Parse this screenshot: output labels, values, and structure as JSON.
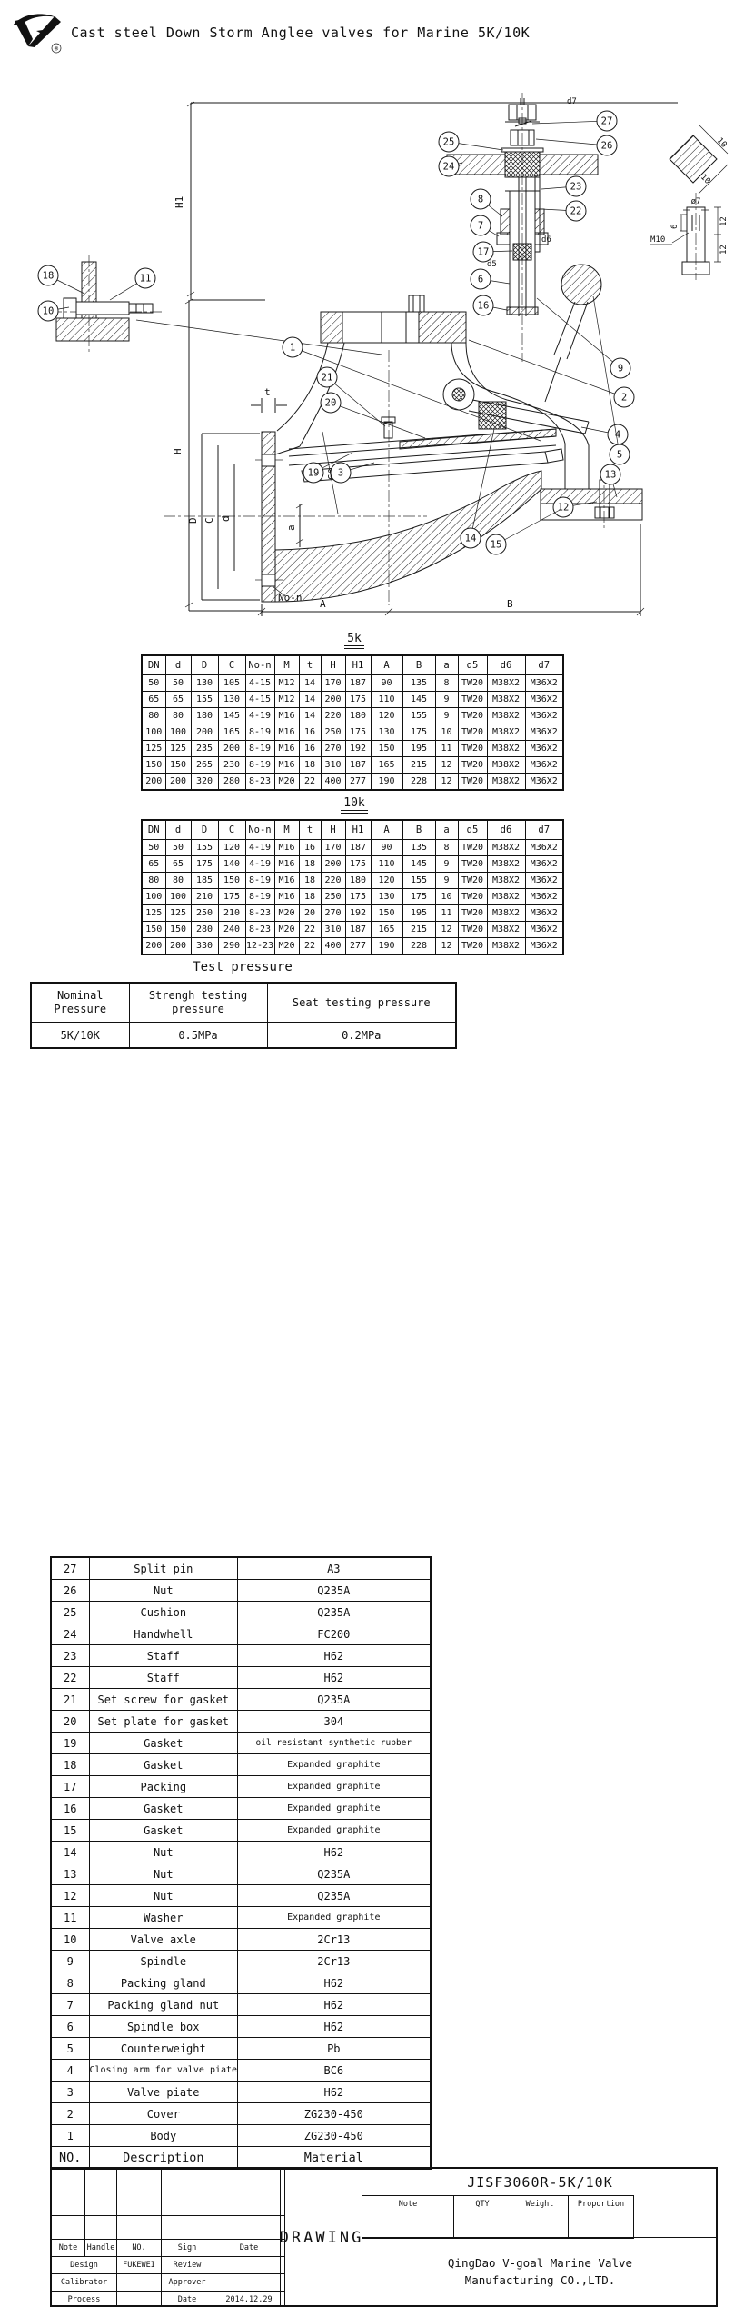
{
  "header": {
    "title": "Cast steel Down Storm Anglee valves for Marine 5K/10K",
    "registered": "®"
  },
  "drawing": {
    "dim_labels": {
      "h1": "H1",
      "h": "H",
      "dd": "D",
      "c": "C",
      "d_small": "d",
      "t": "t",
      "a": "a",
      "aa": "A",
      "b": "B",
      "no_n": "No-n",
      "angle": "6°",
      "d5": "d5",
      "d6": "d6",
      "d7": "d7"
    },
    "detail_labels": {
      "dia7": "ø7",
      "six": "6",
      "twelve_1": "12",
      "twelve_2": "12",
      "m10": "M10",
      "ten_1": "10",
      "ten_2": "10"
    },
    "callouts": [
      "27",
      "26",
      "25",
      "24",
      "23",
      "22",
      "8",
      "7",
      "17",
      "6",
      "16",
      "18",
      "11",
      "10",
      "1",
      "21",
      "20",
      "19",
      "3",
      "9",
      "2",
      "4",
      "5",
      "13",
      "12",
      "14",
      "15"
    ]
  },
  "tables": {
    "t5k": {
      "label": "5k",
      "columns": [
        "DN",
        "d",
        "D",
        "C",
        "No-n",
        "M",
        "t",
        "H",
        "H1",
        "A",
        "B",
        "a",
        "d5",
        "d6",
        "d7"
      ],
      "rows": [
        [
          "50",
          "50",
          "130",
          "105",
          "4-15",
          "M12",
          "14",
          "170",
          "187",
          "90",
          "135",
          "8",
          "TW20",
          "M38X2",
          "M36X2"
        ],
        [
          "65",
          "65",
          "155",
          "130",
          "4-15",
          "M12",
          "14",
          "200",
          "175",
          "110",
          "145",
          "9",
          "TW20",
          "M38X2",
          "M36X2"
        ],
        [
          "80",
          "80",
          "180",
          "145",
          "4-19",
          "M16",
          "14",
          "220",
          "180",
          "120",
          "155",
          "9",
          "TW20",
          "M38X2",
          "M36X2"
        ],
        [
          "100",
          "100",
          "200",
          "165",
          "8-19",
          "M16",
          "16",
          "250",
          "175",
          "130",
          "175",
          "10",
          "TW20",
          "M38X2",
          "M36X2"
        ],
        [
          "125",
          "125",
          "235",
          "200",
          "8-19",
          "M16",
          "16",
          "270",
          "192",
          "150",
          "195",
          "11",
          "TW20",
          "M38X2",
          "M36X2"
        ],
        [
          "150",
          "150",
          "265",
          "230",
          "8-19",
          "M16",
          "18",
          "310",
          "187",
          "165",
          "215",
          "12",
          "TW20",
          "M38X2",
          "M36X2"
        ],
        [
          "200",
          "200",
          "320",
          "280",
          "8-23",
          "M20",
          "22",
          "400",
          "277",
          "190",
          "228",
          "12",
          "TW20",
          "M38X2",
          "M36X2"
        ]
      ]
    },
    "t10k": {
      "label": "10k",
      "columns": [
        "DN",
        "d",
        "D",
        "C",
        "No-n",
        "M",
        "t",
        "H",
        "H1",
        "A",
        "B",
        "a",
        "d5",
        "d6",
        "d7"
      ],
      "rows": [
        [
          "50",
          "50",
          "155",
          "120",
          "4-19",
          "M16",
          "16",
          "170",
          "187",
          "90",
          "135",
          "8",
          "TW20",
          "M38X2",
          "M36X2"
        ],
        [
          "65",
          "65",
          "175",
          "140",
          "4-19",
          "M16",
          "18",
          "200",
          "175",
          "110",
          "145",
          "9",
          "TW20",
          "M38X2",
          "M36X2"
        ],
        [
          "80",
          "80",
          "185",
          "150",
          "8-19",
          "M16",
          "18",
          "220",
          "180",
          "120",
          "155",
          "9",
          "TW20",
          "M38X2",
          "M36X2"
        ],
        [
          "100",
          "100",
          "210",
          "175",
          "8-19",
          "M16",
          "18",
          "250",
          "175",
          "130",
          "175",
          "10",
          "TW20",
          "M38X2",
          "M36X2"
        ],
        [
          "125",
          "125",
          "250",
          "210",
          "8-23",
          "M20",
          "20",
          "270",
          "192",
          "150",
          "195",
          "11",
          "TW20",
          "M38X2",
          "M36X2"
        ],
        [
          "150",
          "150",
          "280",
          "240",
          "8-23",
          "M20",
          "22",
          "310",
          "187",
          "165",
          "215",
          "12",
          "TW20",
          "M38X2",
          "M36X2"
        ],
        [
          "200",
          "200",
          "330",
          "290",
          "12-23",
          "M20",
          "22",
          "400",
          "277",
          "190",
          "228",
          "12",
          "TW20",
          "M38X2",
          "M36X2"
        ]
      ]
    }
  },
  "test_pressure": {
    "title": "Test pressure",
    "columns": [
      "Nominal Pressure",
      "Strengh testing\npressure",
      "Seat testing pressure"
    ],
    "row": [
      "5K/10K",
      "0.5MPa",
      "0.2MPa"
    ]
  },
  "parts_list": {
    "no_header": "NO.",
    "description_header": "Description",
    "material_header": "Material",
    "items": [
      {
        "no": "27",
        "description": "Split pin",
        "material": "A3"
      },
      {
        "no": "26",
        "description": "Nut",
        "material": "Q235A"
      },
      {
        "no": "25",
        "description": "Cushion",
        "material": "Q235A"
      },
      {
        "no": "24",
        "description": "Handwhell",
        "material": "FC200"
      },
      {
        "no": "23",
        "description": "Staff",
        "material": "H62"
      },
      {
        "no": "22",
        "description": "Staff",
        "material": "H62"
      },
      {
        "no": "21",
        "description": "Set screw for gasket",
        "material": "Q235A"
      },
      {
        "no": "20",
        "description": "Set plate for gasket",
        "material": "304"
      },
      {
        "no": "19",
        "description": "Gasket",
        "material": "oil resistant synthetic rubber"
      },
      {
        "no": "18",
        "description": "Gasket",
        "material": "Expanded graphite"
      },
      {
        "no": "17",
        "description": "Packing",
        "material": "Expanded graphite"
      },
      {
        "no": "16",
        "description": "Gasket",
        "material": "Expanded graphite"
      },
      {
        "no": "15",
        "description": "Gasket",
        "material": "Expanded graphite"
      },
      {
        "no": "14",
        "description": "Nut",
        "material": "H62"
      },
      {
        "no": "13",
        "description": "Nut",
        "material": "Q235A"
      },
      {
        "no": "12",
        "description": "Nut",
        "material": "Q235A"
      },
      {
        "no": "11",
        "description": "Washer",
        "material": "Expanded graphite"
      },
      {
        "no": "10",
        "description": "Valve axle",
        "material": "2Cr13"
      },
      {
        "no": "9",
        "description": "Spindle",
        "material": "2Cr13"
      },
      {
        "no": "8",
        "description": "Packing gland",
        "material": "H62"
      },
      {
        "no": "7",
        "description": "Packing gland nut",
        "material": "H62"
      },
      {
        "no": "6",
        "description": "Spindle box",
        "material": "H62"
      },
      {
        "no": "5",
        "description": "Counterweight",
        "material": "Pb"
      },
      {
        "no": "4",
        "description": "Closing arm for valve piate",
        "material": "BC6"
      },
      {
        "no": "3",
        "description": "Valve piate",
        "material": "H62"
      },
      {
        "no": "2",
        "description": "Cover",
        "material": "ZG230-450"
      },
      {
        "no": "1",
        "description": "Body",
        "material": "ZG230-450"
      }
    ]
  },
  "title_block": {
    "drawing_no": "JISF3060R-5K/10K",
    "drawing_label": "DRAWING",
    "company": [
      "QingDao V-goal Marine Valve",
      "Manufacturing CO.,LTD."
    ],
    "spec_headers": [
      "Note",
      "QTY",
      "Weight",
      "Proportion"
    ],
    "sign_grid": [
      [
        "Note",
        "Handle",
        "NO.",
        "Sign",
        "Date"
      ],
      [
        "Design",
        "FUKEWEI",
        "Review",
        ""
      ],
      [
        "Calibrator",
        "",
        "Approver",
        ""
      ],
      [
        "Process",
        "",
        "Date",
        "2014.12.29"
      ]
    ]
  }
}
